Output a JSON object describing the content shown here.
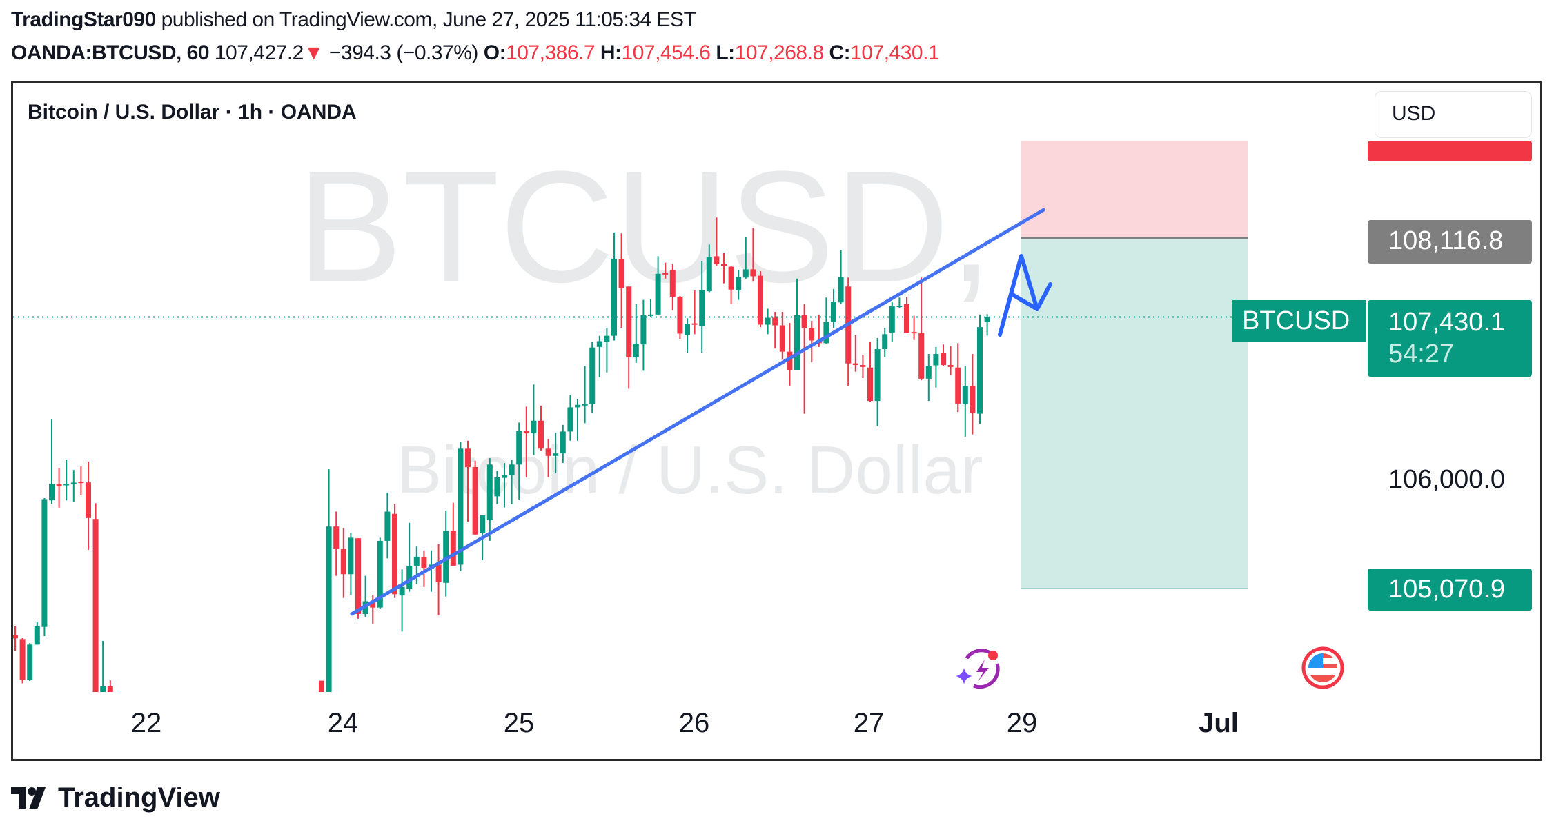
{
  "header": {
    "author": "TradingStar090",
    "published_text": "published on TradingView.com, June 27, 2025 11:05:34 EST",
    "symbol": "OANDA:BTCUSD, 60",
    "last": "107,427.2",
    "change_direction": "down",
    "change": "−394.3 (−0.37%)",
    "o_label": "O:",
    "o": "107,386.7",
    "h_label": "H:",
    "h": "107,454.6",
    "l_label": "L:",
    "l": "107,268.8",
    "c_label": "C:",
    "c": "107,430.1"
  },
  "chart": {
    "title": "Bitcoin / U.S. Dollar · 1h · OANDA",
    "watermark_symbol": "BTCUSD, 1h",
    "watermark_name": "Bitcoin / U.S. Dollar",
    "currency_button": "USD",
    "symbol_tag": "BTCUSD",
    "current_price": "107,430.1",
    "countdown": "54:27",
    "entry_price": "108,116.8",
    "target_price": "105,070.9",
    "axis_price": "106,000.0",
    "time_labels": [
      "22",
      "24",
      "25",
      "26",
      "27",
      "29",
      "Jul"
    ],
    "colors": {
      "up": "#089981",
      "down": "#f23645",
      "trendline": "#4472f0",
      "drawing": "#2962ff",
      "stop_zone": "#fbd6da",
      "target_zone": "#d0ebe5",
      "entry_label": "#7f7f7f"
    }
  },
  "chart_data": {
    "type": "candlestick",
    "interval": "1h",
    "price_axis_unit": "USD",
    "ohlc_format": [
      "open",
      "high",
      "low",
      "close"
    ],
    "segment_before_22": [
      [
        104663,
        104747,
        104531,
        104637
      ],
      [
        104631,
        104643,
        104247,
        104277
      ],
      [
        104277,
        104597,
        104267,
        104583
      ],
      [
        104583,
        104783,
        104583,
        104747
      ],
      [
        104737,
        105857,
        104657,
        105847
      ],
      [
        105837,
        106539,
        105807,
        105981
      ],
      [
        105977,
        106119,
        105773,
        105961
      ],
      [
        105971,
        106191,
        105837,
        105979
      ],
      [
        105979,
        106101,
        105821,
        105991
      ],
      [
        105999,
        106131,
        105881,
        105991
      ],
      [
        105993,
        106173,
        105407,
        105683
      ],
      [
        105675,
        105813,
        104171,
        104171
      ],
      [
        104171,
        104615,
        104171,
        104221
      ],
      [
        104221,
        104273,
        104171,
        104171
      ]
    ],
    "segment_from_24": [
      [
        104270,
        104270,
        104160,
        104160
      ],
      [
        104160,
        106107,
        104160,
        105609
      ],
      [
        105609,
        105739,
        105181,
        105416
      ],
      [
        105416,
        105595,
        104988,
        105195
      ],
      [
        105195,
        105554,
        105015,
        105512
      ],
      [
        105507,
        105507,
        104808,
        104849
      ],
      [
        104849,
        105181,
        104822,
        104960
      ],
      [
        104960,
        105015,
        104766,
        104905
      ],
      [
        104905,
        105512,
        104891,
        105485
      ],
      [
        105485,
        105905,
        105333,
        105739
      ],
      [
        105720,
        105803,
        104988,
        105021
      ],
      [
        105010,
        105236,
        104697,
        105084
      ],
      [
        105070,
        105642,
        105043,
        105269
      ],
      [
        105269,
        105435,
        105112,
        105347
      ],
      [
        105341,
        105402,
        105084,
        105250
      ],
      [
        105242,
        105402,
        105043,
        105278
      ],
      [
        105278,
        105457,
        104836,
        105126
      ],
      [
        105120,
        105747,
        105001,
        105573
      ],
      [
        105573,
        105816,
        105269,
        105269
      ],
      [
        105278,
        106347,
        105222,
        106286
      ],
      [
        106286,
        106355,
        105651,
        106126
      ],
      [
        106126,
        106181,
        105540,
        105540
      ],
      [
        105554,
        105706,
        105319,
        105706
      ],
      [
        105664,
        106203,
        105485,
        106148
      ],
      [
        105872,
        106093,
        105803,
        106037
      ],
      [
        106032,
        106162,
        105775,
        106057
      ],
      [
        106057,
        106189,
        105803,
        106148
      ],
      [
        106148,
        106513,
        105844,
        106438
      ],
      [
        106438,
        106651,
        106037,
        106419
      ],
      [
        106419,
        106844,
        106231,
        106529
      ],
      [
        106529,
        106659,
        106264,
        106286
      ],
      [
        106286,
        106369,
        106037,
        106223
      ],
      [
        106223,
        106424,
        106071,
        106245
      ],
      [
        106245,
        106493,
        106162,
        106435
      ],
      [
        106435,
        106756,
        106355,
        106645
      ],
      [
        106645,
        106714,
        106355,
        106667
      ],
      [
        106667,
        107004,
        106507,
        106673
      ],
      [
        106673,
        107212,
        106596,
        107165
      ],
      [
        107170,
        107267,
        106908,
        107220
      ],
      [
        107217,
        107336,
        106949,
        107267
      ],
      [
        107267,
        108165,
        107226,
        107936
      ],
      [
        107936,
        108157,
        107336,
        107681
      ],
      [
        107695,
        107695,
        106806,
        107079
      ],
      [
        107079,
        107543,
        107032,
        107198
      ],
      [
        107192,
        107579,
        106963,
        107447
      ],
      [
        107447,
        107585,
        107433,
        107452
      ],
      [
        107452,
        107958,
        107447,
        107806
      ],
      [
        107811,
        107902,
        107764,
        107800
      ],
      [
        107839,
        107889,
        107488,
        107607
      ],
      [
        107607,
        107612,
        107239,
        107286
      ],
      [
        107275,
        107419,
        107121,
        107369
      ],
      [
        107375,
        107662,
        107281,
        107364
      ],
      [
        107350,
        107916,
        107121,
        107662
      ],
      [
        107654,
        108060,
        107646,
        107952
      ],
      [
        107958,
        108295,
        107875,
        107889
      ],
      [
        107889,
        107985,
        107723,
        107875
      ],
      [
        107867,
        107875,
        107543,
        107668
      ],
      [
        107662,
        107839,
        107579,
        107778
      ],
      [
        107773,
        108124,
        107764,
        107844
      ],
      [
        107844,
        108206,
        107737,
        107784
      ],
      [
        107789,
        107828,
        107342,
        107364
      ],
      [
        107364,
        107502,
        107281,
        107424
      ],
      [
        107424,
        107474,
        107156,
        107358
      ],
      [
        107358,
        107474,
        107060,
        107129
      ],
      [
        107129,
        107378,
        106830,
        106971
      ],
      [
        106971,
        107764,
        106971,
        107447
      ],
      [
        107447,
        107543,
        106590,
        107336
      ],
      [
        107336,
        107397,
        107038,
        107226
      ],
      [
        107226,
        107452,
        107170,
        107203
      ],
      [
        107203,
        107599,
        107198,
        107386
      ],
      [
        107386,
        107673,
        107336,
        107563
      ],
      [
        107557,
        108013,
        107543,
        107778
      ],
      [
        107695,
        107773,
        106833,
        107027
      ],
      [
        107027,
        107275,
        106955,
        107013
      ],
      [
        107013,
        107101,
        106899,
        106996
      ],
      [
        106991,
        107212,
        106695,
        106701
      ],
      [
        106701,
        107248,
        106480,
        107151
      ],
      [
        107151,
        107336,
        107082,
        107281
      ],
      [
        107295,
        107563,
        107212,
        107524
      ],
      [
        107524,
        107599,
        107507,
        107529
      ],
      [
        107543,
        107607,
        107295,
        107295
      ],
      [
        107300,
        107441,
        107231,
        107295
      ],
      [
        107295,
        107773,
        106880,
        106894
      ],
      [
        106894,
        107109,
        106701,
        107004
      ],
      [
        107010,
        107170,
        106817,
        107109
      ],
      [
        107115,
        107192,
        107004,
        107013
      ],
      [
        107013,
        107176,
        106922,
        106996
      ],
      [
        106991,
        107203,
        106604,
        106678
      ],
      [
        106673,
        107004,
        106391,
        106833
      ],
      [
        106833,
        107109,
        106410,
        106596
      ],
      [
        106590,
        107452,
        106502,
        107342
      ],
      [
        107386.7,
        107454.6,
        107268.8,
        107430.1
      ]
    ],
    "trendline": {
      "start_price": 104850,
      "end_price": 108360
    },
    "position": {
      "type": "long",
      "stop_price": 108960,
      "entry_price": 108116.8,
      "target_price": 105070.9
    }
  }
}
